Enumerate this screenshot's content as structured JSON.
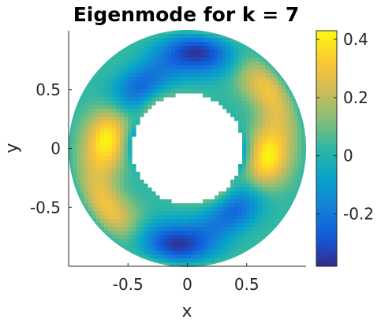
{
  "chart_data": {
    "type": "heatmap",
    "title": "Eigenmode for k = 7",
    "xlabel": "x",
    "ylabel": "y",
    "xlim": [
      -1,
      1
    ],
    "ylim": [
      -1,
      1
    ],
    "x_ticks": [
      "-0.5",
      "0",
      "0.5"
    ],
    "x_tick_values": [
      -0.5,
      0,
      0.5
    ],
    "y_ticks": [
      "0.5",
      "0",
      "-0.5"
    ],
    "y_tick_values": [
      0.5,
      0,
      -0.5
    ],
    "colorbar": {
      "ticks": [
        "0.4",
        "0.2",
        "0",
        "-0.2"
      ],
      "tick_values": [
        0.4,
        0.2,
        0,
        -0.2
      ],
      "range": [
        -0.38,
        0.43
      ]
    },
    "domain": "annulus",
    "inner_radius": 0.5,
    "outer_radius": 1.0,
    "grid": false,
    "colormap": "parula",
    "colormap_stops": [
      "#352a87",
      "#0f5cdd",
      "#1481d6",
      "#06a4ca",
      "#2eb7a4",
      "#87bf77",
      "#d1bb59",
      "#fec832",
      "#f9fb0e"
    ]
  }
}
